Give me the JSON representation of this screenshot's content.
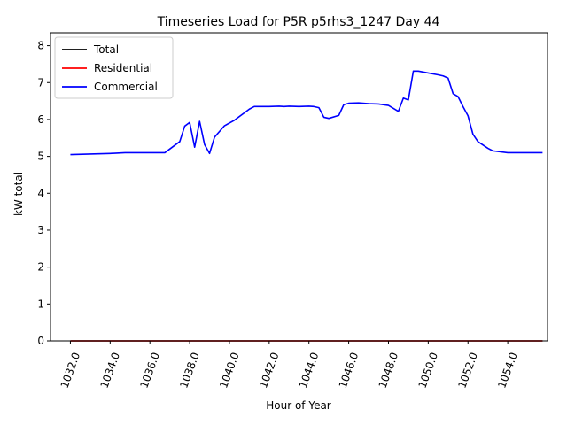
{
  "chart_data": {
    "type": "line",
    "title": "Timeseries Load for P5R p5rhs3_1247  Day 44",
    "xlabel": "Hour of Year",
    "ylabel": "kW total",
    "xlim": [
      1031,
      1056
    ],
    "ylim": [
      0,
      8.35
    ],
    "xticks": [
      1032,
      1034,
      1036,
      1038,
      1040,
      1042,
      1044,
      1046,
      1048,
      1050,
      1052,
      1054
    ],
    "xtick_labels": [
      "1032.0",
      "1034.0",
      "1036.0",
      "1038.0",
      "1040.0",
      "1042.0",
      "1044.0",
      "1046.0",
      "1048.0",
      "1050.0",
      "1052.0",
      "1054.0"
    ],
    "yticks": [
      0,
      1,
      2,
      3,
      4,
      5,
      6,
      7,
      8
    ],
    "ytick_labels": [
      "0",
      "1",
      "2",
      "3",
      "4",
      "5",
      "6",
      "7",
      "8"
    ],
    "grid": false,
    "legend_position": "top-left",
    "series": [
      {
        "name": "Total",
        "color": "#000000",
        "x": [
          1032.0,
          1055.75
        ],
        "y": [
          0.0,
          0.0
        ]
      },
      {
        "name": "Residential",
        "color": "#ff0000",
        "x": [
          1032.0,
          1055.75
        ],
        "y": [
          0.0,
          0.0
        ]
      },
      {
        "name": "Commercial",
        "color": "#0000ff",
        "x": [
          1032.0,
          1034.0,
          1034.75,
          1036.0,
          1036.75,
          1037.5,
          1037.75,
          1038.0,
          1038.25,
          1038.5,
          1038.75,
          1039.0,
          1039.25,
          1039.75,
          1040.25,
          1041.0,
          1041.25,
          1042.0,
          1042.5,
          1042.75,
          1043.0,
          1043.5,
          1044.0,
          1044.25,
          1044.5,
          1044.75,
          1045.0,
          1045.5,
          1045.75,
          1046.0,
          1046.5,
          1047.0,
          1047.5,
          1048.0,
          1048.25,
          1048.5,
          1048.75,
          1049.0,
          1049.25,
          1049.5,
          1050.0,
          1050.5,
          1050.75,
          1051.0,
          1051.25,
          1051.5,
          1051.75,
          1052.0,
          1052.25,
          1052.5,
          1053.0,
          1053.25,
          1054.0,
          1055.0,
          1055.75
        ],
        "y": [
          5.05,
          5.08,
          5.1,
          5.1,
          5.1,
          5.4,
          5.82,
          5.92,
          5.25,
          5.95,
          5.32,
          5.08,
          5.52,
          5.83,
          5.98,
          6.28,
          6.35,
          6.35,
          6.36,
          6.35,
          6.36,
          6.35,
          6.36,
          6.35,
          6.32,
          6.06,
          6.03,
          6.11,
          6.4,
          6.44,
          6.45,
          6.43,
          6.42,
          6.38,
          6.3,
          6.22,
          6.58,
          6.53,
          7.31,
          7.31,
          7.26,
          7.21,
          7.18,
          7.12,
          6.7,
          6.62,
          6.35,
          6.1,
          5.6,
          5.4,
          5.22,
          5.15,
          5.1,
          5.1,
          5.1
        ]
      }
    ]
  }
}
